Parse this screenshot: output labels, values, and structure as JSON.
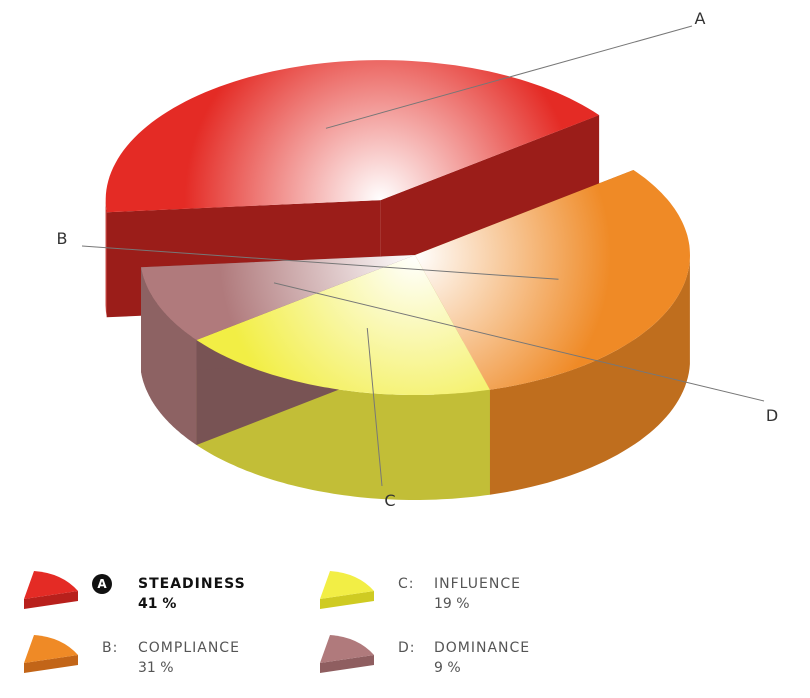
{
  "chart_data": {
    "type": "pie",
    "title": "",
    "slices": [
      {
        "key": "A",
        "letter_label": "A",
        "legend_letter": "A",
        "legend_prefix": "",
        "name": "STEADINESS",
        "value": 41,
        "value_label": "41 %",
        "color": "#e42b25",
        "highlight": true
      },
      {
        "key": "B",
        "letter_label": "B",
        "legend_letter": "B",
        "legend_prefix": "B:",
        "name": "COMPLIANCE",
        "value": 31,
        "value_label": "31 %",
        "color": "#ef8a26",
        "highlight": false
      },
      {
        "key": "C",
        "letter_label": "C",
        "legend_letter": "C",
        "legend_prefix": "C:",
        "name": "INFLUENCE",
        "value": 19,
        "value_label": "19 %",
        "color": "#f2ee45",
        "highlight": false
      },
      {
        "key": "D",
        "letter_label": "D",
        "legend_letter": "D",
        "legend_prefix": "D:",
        "name": "DOMINANCE",
        "value": 9,
        "value_label": "9 %",
        "color": "#b07a7c",
        "highlight": false
      }
    ],
    "exploded_slice": "A",
    "style": "3d-exploded-pie",
    "legend_position": "bottom"
  }
}
